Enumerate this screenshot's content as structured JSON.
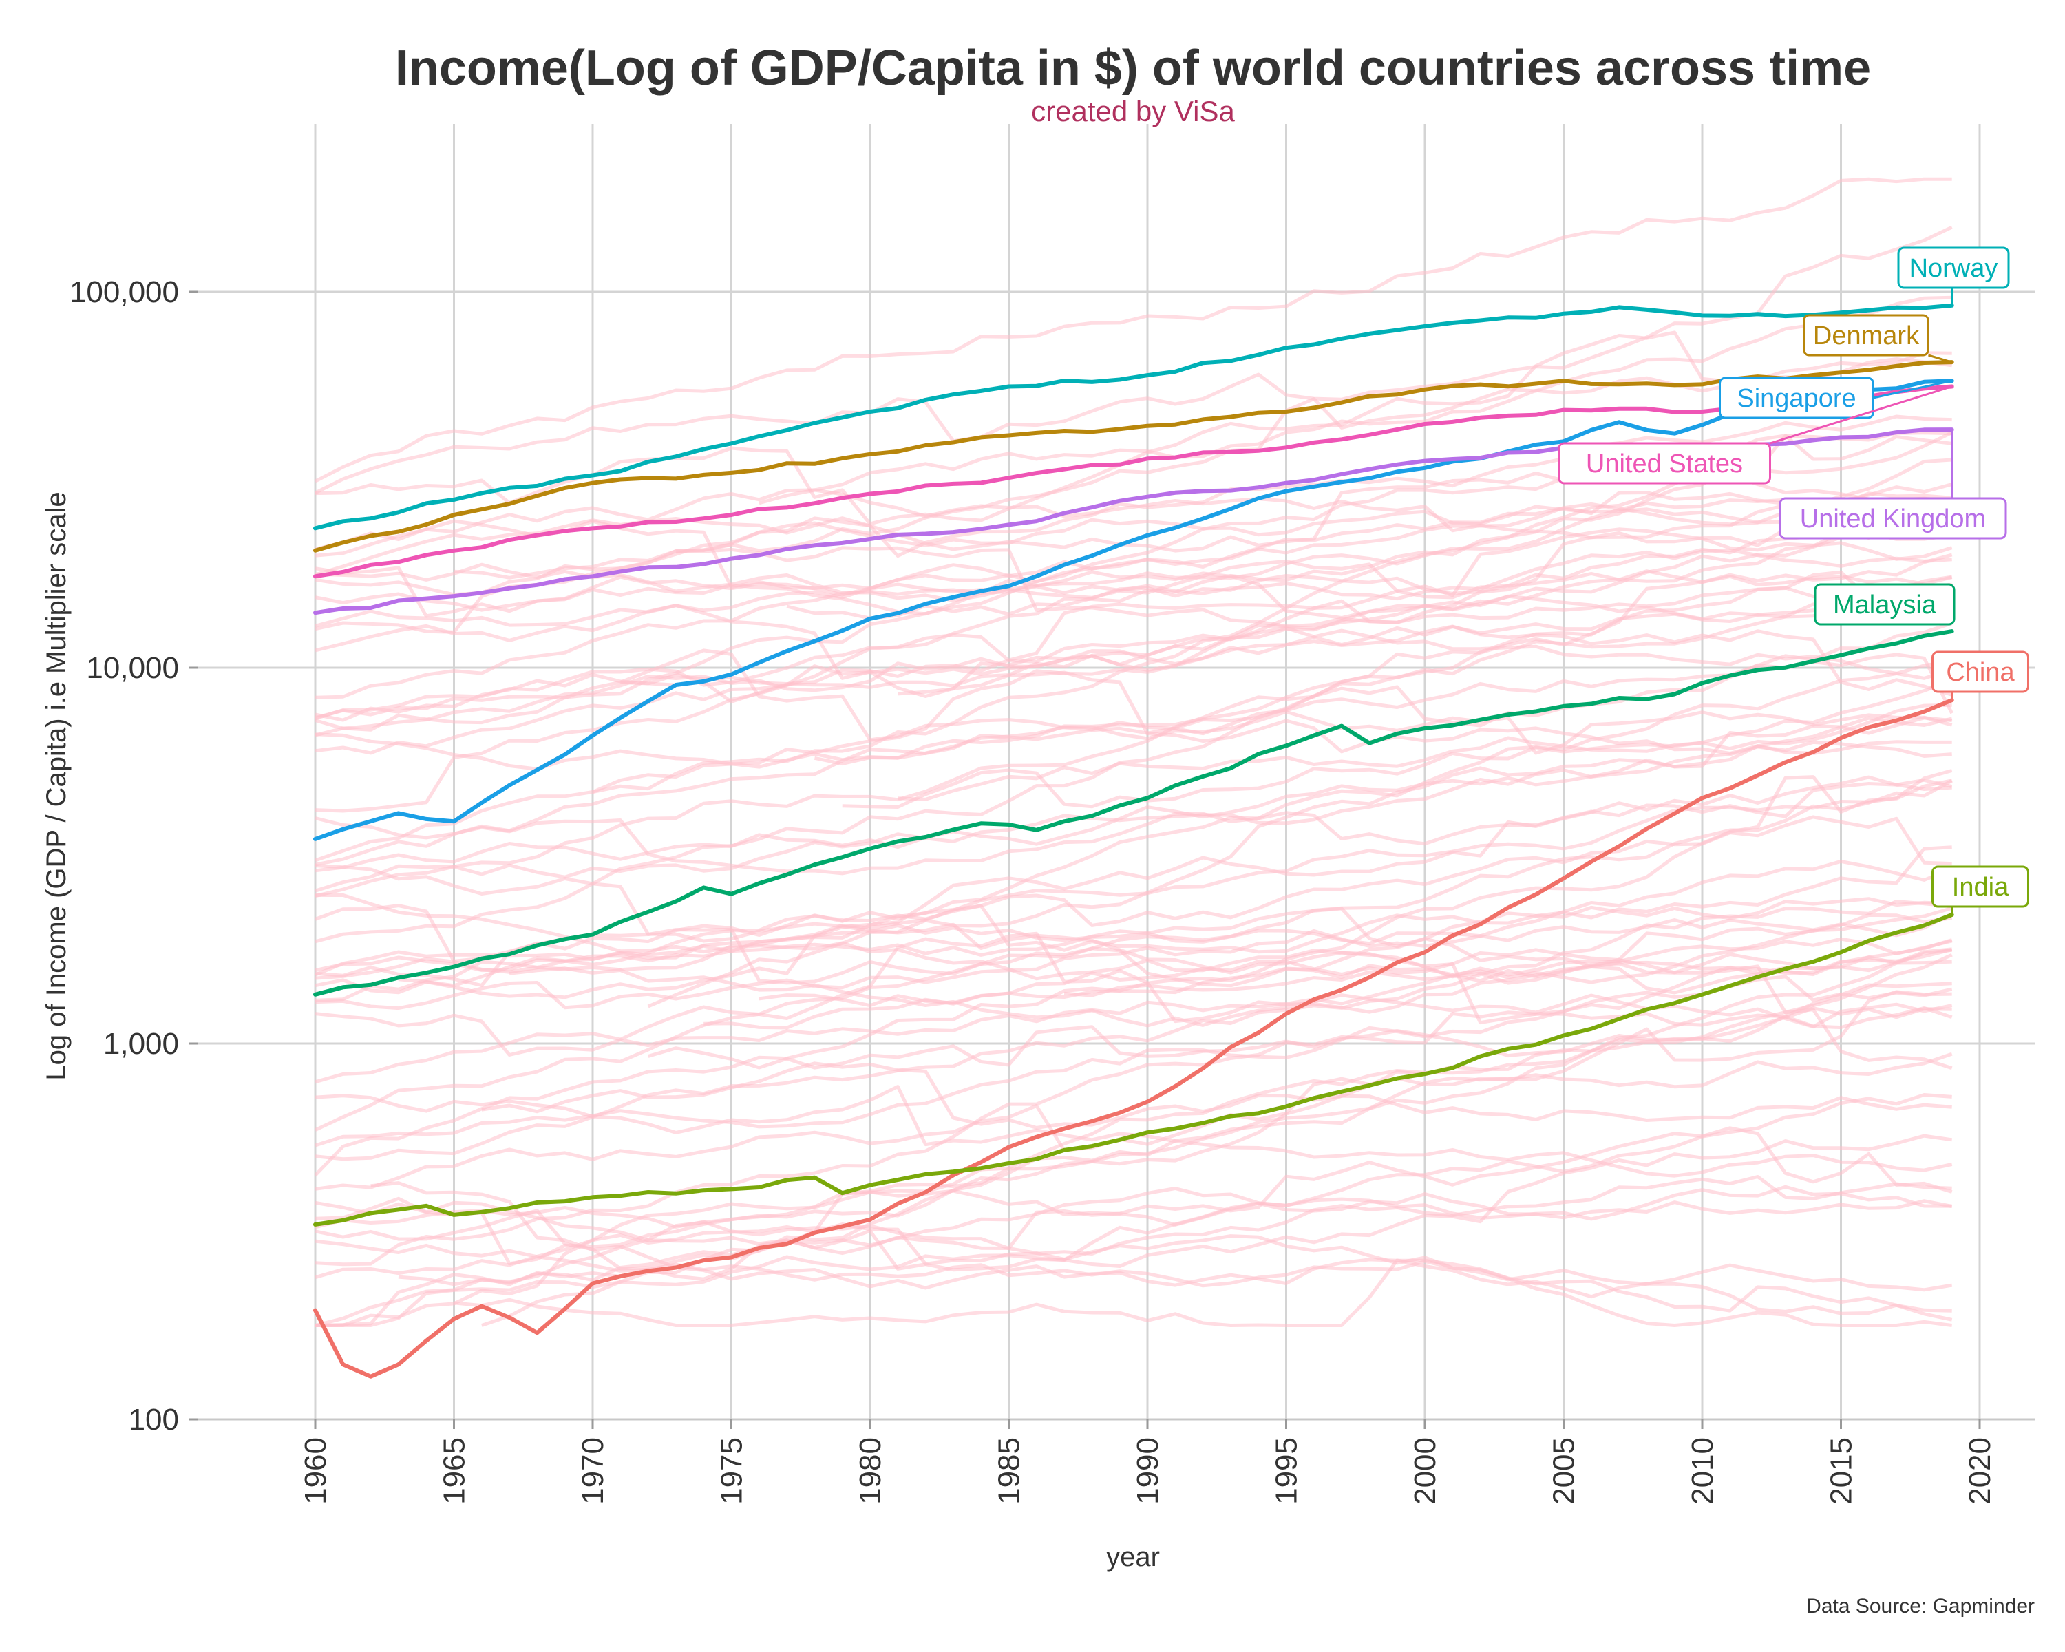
{
  "chart_data": {
    "type": "line",
    "title": "Income(Log of GDP/Capita in $) of world countries across time",
    "subtitle": "created by ViSa",
    "caption": "Data Source: Gapminder",
    "xlabel": "year",
    "ylabel": "Log of Income (GDP / Capita) i.e Multiplier scale",
    "x_scale": "linear",
    "y_scale": "log10",
    "xlim": [
      1958,
      2022
    ],
    "ylim": [
      100,
      250000
    ],
    "x_ticks": [
      1960,
      1965,
      1970,
      1975,
      1980,
      1985,
      1990,
      1995,
      2000,
      2005,
      2010,
      2015,
      2020
    ],
    "x_tick_labels": [
      "1960",
      "1965",
      "1970",
      "1975",
      "1980",
      "1985",
      "1990",
      "1995",
      "2000",
      "2005",
      "2010",
      "2015",
      "2020"
    ],
    "y_ticks": [
      100,
      1000,
      10000,
      100000
    ],
    "y_tick_labels": [
      "100",
      "1,000",
      "10,000",
      "100,000"
    ],
    "grid": true,
    "background_series_color": "#ffc0cb",
    "background_series_count": 80,
    "series": [
      {
        "name": "Norway",
        "color": "#00b0b6",
        "x": [
          1960,
          1965,
          1970,
          1975,
          1980,
          1985,
          1990,
          1995,
          2000,
          2005,
          2007,
          2010,
          2015,
          2019
        ],
        "values": [
          23500,
          28000,
          32500,
          39500,
          48000,
          56000,
          60000,
          71000,
          81000,
          87500,
          91000,
          86500,
          88000,
          92000
        ]
      },
      {
        "name": "Denmark",
        "color": "#b8860b",
        "x": [
          1960,
          1963,
          1965,
          1970,
          1975,
          1980,
          1985,
          1990,
          1995,
          2000,
          2005,
          2009,
          2015,
          2019
        ],
        "values": [
          20500,
          23000,
          25500,
          31000,
          33000,
          37000,
          41500,
          44000,
          48000,
          55000,
          58000,
          56500,
          61000,
          65000
        ]
      },
      {
        "name": "Singapore",
        "color": "#1a9fe6",
        "x": [
          1960,
          1963,
          1965,
          1970,
          1973,
          1975,
          1980,
          1985,
          1990,
          1995,
          2000,
          2005,
          2007,
          2009,
          2012,
          2015,
          2019
        ],
        "values": [
          3500,
          4100,
          3900,
          6600,
          9000,
          9600,
          13500,
          16500,
          22500,
          29500,
          34000,
          40000,
          45000,
          42000,
          51000,
          54000,
          58000
        ]
      },
      {
        "name": "United States",
        "color": "#ee55b5",
        "x": [
          1960,
          1965,
          1970,
          1975,
          1980,
          1985,
          1990,
          1995,
          2000,
          2005,
          2010,
          2015,
          2019
        ],
        "values": [
          17500,
          20500,
          23500,
          25500,
          29000,
          32000,
          36000,
          38500,
          44500,
          48500,
          48000,
          52000,
          56000
        ]
      },
      {
        "name": "United Kingdom",
        "color": "#b76fe8",
        "x": [
          1960,
          1965,
          1970,
          1975,
          1980,
          1985,
          1990,
          1995,
          2000,
          2005,
          2010,
          2015,
          2019
        ],
        "values": [
          14000,
          15500,
          17500,
          19500,
          22000,
          24000,
          28500,
          31000,
          35500,
          38500,
          38000,
          41000,
          43000
        ]
      },
      {
        "name": "Malaysia",
        "color": "#00a86b",
        "x": [
          1960,
          1965,
          1970,
          1974,
          1975,
          1980,
          1984,
          1986,
          1990,
          1995,
          1997,
          1998,
          2000,
          2005,
          2009,
          2010,
          2015,
          2019
        ],
        "values": [
          1350,
          1600,
          1950,
          2600,
          2500,
          3300,
          3850,
          3700,
          4500,
          6200,
          7000,
          6300,
          6900,
          7900,
          8500,
          9100,
          10800,
          12500
        ]
      },
      {
        "name": "China",
        "color": "#f07068",
        "x": [
          1960,
          1961,
          1962,
          1963,
          1965,
          1966,
          1968,
          1970,
          1975,
          1980,
          1985,
          1990,
          1995,
          2000,
          2005,
          2010,
          2015,
          2019
        ],
        "values": [
          195,
          140,
          130,
          140,
          185,
          200,
          170,
          230,
          270,
          340,
          530,
          700,
          1200,
          1750,
          2750,
          4500,
          6500,
          8200
        ]
      },
      {
        "name": "India",
        "color": "#7aa80a",
        "x": [
          1960,
          1964,
          1965,
          1970,
          1975,
          1978,
          1979,
          1980,
          1985,
          1990,
          1995,
          2000,
          2005,
          2010,
          2015,
          2019
        ],
        "values": [
          330,
          370,
          350,
          390,
          410,
          440,
          400,
          420,
          480,
          580,
          680,
          830,
          1050,
          1350,
          1750,
          2200
        ]
      }
    ],
    "series_labels": [
      "Norway",
      "Denmark",
      "Singapore",
      "United States",
      "United Kingdom",
      "Malaysia",
      "China",
      "India"
    ]
  }
}
